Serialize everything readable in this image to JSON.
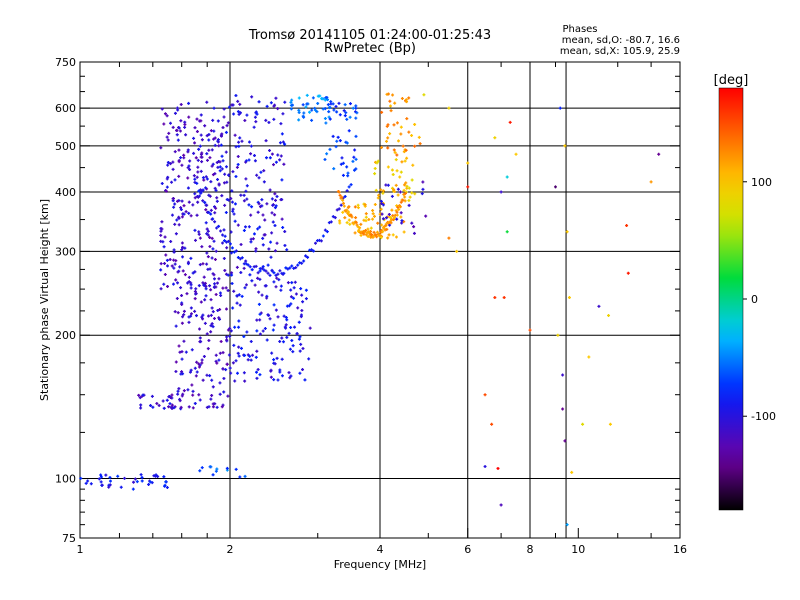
{
  "chart_data": {
    "type": "scatter",
    "title": "Tromsø 20141105 01:24:00-01:25:43",
    "subtitle": "RwPretec (Bp)",
    "xlabel": "Frequency [MHz]",
    "ylabel": "Stationary phase Virtual Height [km]",
    "xscale": "log",
    "yscale": "log",
    "xlim": [
      1,
      16
    ],
    "ylim": [
      75,
      750
    ],
    "x_ticks": [
      1,
      2,
      4,
      6,
      8,
      10,
      16
    ],
    "x_tick_labels": [
      "1",
      "2",
      "4",
      "6",
      "8",
      "10",
      "16"
    ],
    "y_ticks": [
      75,
      100,
      200,
      300,
      400,
      500,
      600,
      750
    ],
    "y_tick_labels": [
      "75",
      "100",
      "200",
      "300",
      "400",
      "500",
      "600",
      "750"
    ],
    "grid": true,
    "colorbar": {
      "label": "[deg]",
      "range": [
        -180,
        180
      ],
      "ticks": [
        -100,
        0,
        100
      ],
      "tick_labels": [
        "-100",
        "0",
        "100"
      ]
    },
    "stats_header": "Phases",
    "stats_lines": [
      "mean, sd,O: -80.7, 16.6",
      "mean, sd,X: 105.9, 25.9"
    ],
    "clusters": [
      {
        "x": [
          1.45,
          1.9
        ],
        "y": [
          250,
          620
        ],
        "n": 260,
        "phase": -110
      },
      {
        "x": [
          1.9,
          2.6
        ],
        "y": [
          260,
          640
        ],
        "n": 200,
        "phase": -100
      },
      {
        "x": [
          1.55,
          2.0
        ],
        "y": [
          140,
          260
        ],
        "n": 150,
        "phase": -110
      },
      {
        "x": [
          2.0,
          2.9
        ],
        "y": [
          160,
          260
        ],
        "n": 140,
        "phase": -95
      },
      {
        "x": [
          1.3,
          1.6
        ],
        "y": [
          140,
          150
        ],
        "n": 30,
        "phase": -110
      },
      {
        "x": [
          1.0,
          1.5
        ],
        "y": [
          95,
          102
        ],
        "n": 40,
        "phase": -90
      },
      {
        "x": [
          1.7,
          2.2
        ],
        "y": [
          100,
          106
        ],
        "n": 12,
        "phase": -60
      },
      {
        "x": [
          2.6,
          3.2
        ],
        "y": [
          560,
          640
        ],
        "n": 40,
        "phase": -50
      },
      {
        "x": [
          3.1,
          3.6
        ],
        "y": [
          430,
          620
        ],
        "n": 50,
        "phase": -70
      },
      {
        "x": [
          3.3,
          4.5
        ],
        "y": [
          320,
          380
        ],
        "n": 70,
        "phase": 110
      },
      {
        "x": [
          3.9,
          4.7
        ],
        "y": [
          380,
          470
        ],
        "n": 40,
        "phase": 100
      },
      {
        "x": [
          4.0,
          4.9
        ],
        "y": [
          470,
          650
        ],
        "n": 40,
        "phase": 120
      },
      {
        "x": [
          4.0,
          5.0
        ],
        "y": [
          320,
          420
        ],
        "n": 25,
        "phase": -110
      }
    ],
    "arcs": [
      {
        "x": [
          1.7,
          3.5
        ],
        "y": [
          270,
          420
        ],
        "phase": -90
      },
      {
        "x": [
          3.3,
          4.5
        ],
        "y": [
          325,
          400
        ],
        "phase": 120
      }
    ],
    "points": [
      {
        "x": 5.5,
        "y": 320,
        "phase": 130
      },
      {
        "x": 6.0,
        "y": 410,
        "phase": 170
      },
      {
        "x": 6.8,
        "y": 520,
        "phase": 90
      },
      {
        "x": 7.0,
        "y": 400,
        "phase": -110
      },
      {
        "x": 7.2,
        "y": 330,
        "phase": 20
      },
      {
        "x": 7.3,
        "y": 560,
        "phase": 170
      },
      {
        "x": 7.5,
        "y": 480,
        "phase": 100
      },
      {
        "x": 6.5,
        "y": 150,
        "phase": 150
      },
      {
        "x": 6.7,
        "y": 130,
        "phase": 150
      },
      {
        "x": 6.9,
        "y": 105,
        "phase": 180
      },
      {
        "x": 7.0,
        "y": 88,
        "phase": -120
      },
      {
        "x": 6.5,
        "y": 106,
        "phase": -100
      },
      {
        "x": 7.1,
        "y": 240,
        "phase": 160
      },
      {
        "x": 6.8,
        "y": 240,
        "phase": 160
      },
      {
        "x": 8.0,
        "y": 205,
        "phase": 150
      },
      {
        "x": 9.0,
        "y": 410,
        "phase": -150
      },
      {
        "x": 9.2,
        "y": 600,
        "phase": -80
      },
      {
        "x": 9.4,
        "y": 500,
        "phase": 100
      },
      {
        "x": 9.5,
        "y": 330,
        "phase": 100
      },
      {
        "x": 9.6,
        "y": 240,
        "phase": 100
      },
      {
        "x": 9.3,
        "y": 165,
        "phase": -110
      },
      {
        "x": 9.3,
        "y": 140,
        "phase": -140
      },
      {
        "x": 9.4,
        "y": 120,
        "phase": -140
      },
      {
        "x": 9.5,
        "y": 80,
        "phase": -40
      },
      {
        "x": 9.7,
        "y": 103,
        "phase": 100
      },
      {
        "x": 10.5,
        "y": 180,
        "phase": 100
      },
      {
        "x": 11.0,
        "y": 230,
        "phase": -110
      },
      {
        "x": 11.5,
        "y": 220,
        "phase": 90
      },
      {
        "x": 12.5,
        "y": 340,
        "phase": 160
      },
      {
        "x": 12.6,
        "y": 270,
        "phase": 170
      },
      {
        "x": 14.0,
        "y": 420,
        "phase": 120
      },
      {
        "x": 14.5,
        "y": 480,
        "phase": -140
      },
      {
        "x": 4.9,
        "y": 640,
        "phase": 80
      },
      {
        "x": 5.5,
        "y": 600,
        "phase": 90
      },
      {
        "x": 9.1,
        "y": 200,
        "phase": 90
      },
      {
        "x": 5.7,
        "y": 300,
        "phase": 100
      },
      {
        "x": 7.2,
        "y": 430,
        "phase": -20
      },
      {
        "x": 6.0,
        "y": 460,
        "phase": 100
      },
      {
        "x": 10.2,
        "y": 130,
        "phase": 80
      },
      {
        "x": 11.6,
        "y": 130,
        "phase": 100
      }
    ]
  }
}
